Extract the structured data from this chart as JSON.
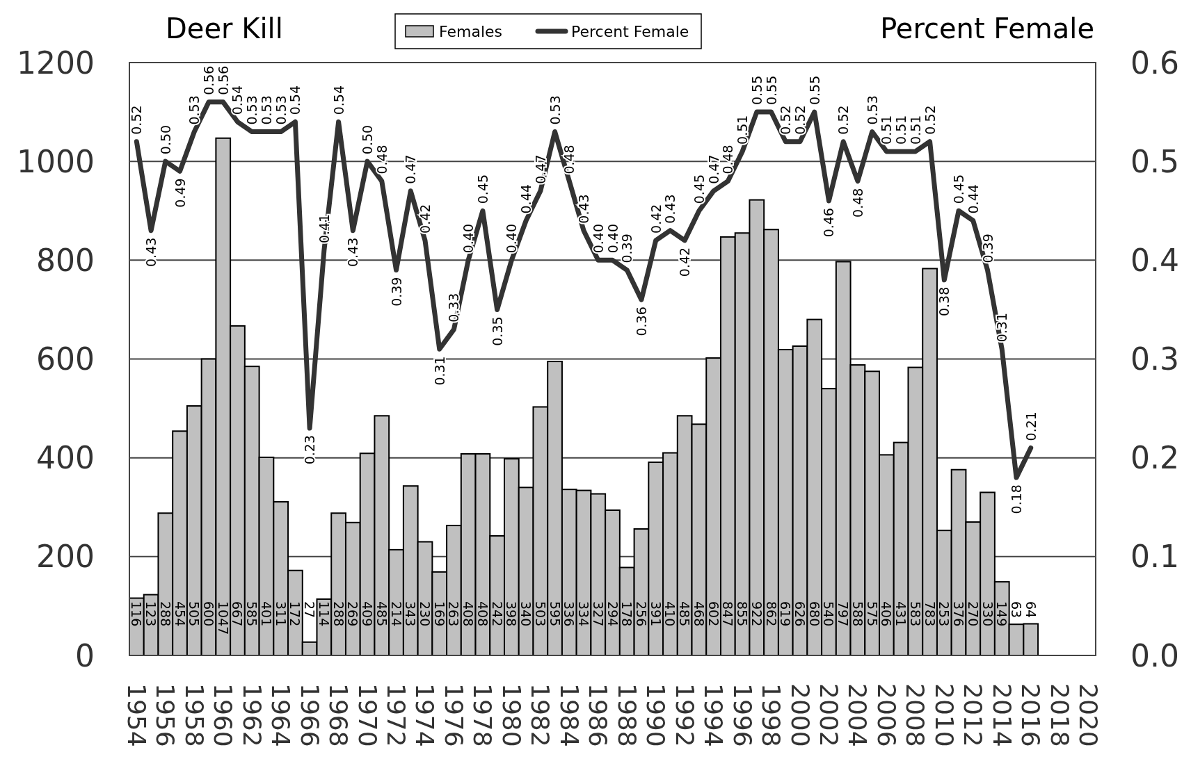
{
  "chart_data": {
    "type": "bar",
    "ylabel": "Deer Kill",
    "y2label": "Percent Female",
    "categories": [
      "1954",
      null,
      "1956",
      null,
      "1958",
      null,
      "1960",
      null,
      "1962",
      null,
      "1964",
      null,
      "1966",
      null,
      "1968",
      null,
      "1970",
      null,
      "1972",
      null,
      "1974",
      null,
      "1976",
      null,
      "1978",
      null,
      "1980",
      null,
      "1982",
      null,
      "1984",
      null,
      "1986",
      null,
      "1988",
      null,
      "1990",
      null,
      "1992",
      null,
      "1994",
      null,
      "1996",
      null,
      "1998",
      null,
      "2000",
      null,
      "2002",
      null,
      "2004",
      null,
      "2006",
      null,
      "2008",
      null,
      "2010",
      null,
      "2012",
      null,
      "2014",
      null,
      "2016",
      null,
      "2018",
      null,
      "2020"
    ],
    "series": [
      {
        "name": "Females",
        "color": "#c0c0c0",
        "data_labels": true,
        "values": [
          116,
          123,
          288,
          454,
          505,
          600,
          1047,
          667,
          585,
          401,
          311,
          172,
          27,
          114,
          288,
          269,
          409,
          485,
          214,
          343,
          230,
          169,
          263,
          408,
          408,
          242,
          398,
          340,
          503,
          595,
          336,
          334,
          327,
          294,
          178,
          256,
          391,
          410,
          485,
          468,
          602,
          847,
          855,
          922,
          862,
          619,
          626,
          680,
          540,
          797,
          588,
          575,
          406,
          431,
          583,
          783,
          253,
          376,
          270,
          330,
          149,
          63,
          64,
          null,
          null,
          null,
          null
        ]
      },
      {
        "name": "Percent Female",
        "type": "line",
        "axis": "y2",
        "color": "#333333",
        "values": [
          0.52,
          0.43,
          0.5,
          0.49,
          0.53,
          0.56,
          0.56,
          0.54,
          0.53,
          0.53,
          0.53,
          0.54,
          0.23,
          0.41,
          0.54,
          0.43,
          0.5,
          0.48,
          0.39,
          0.47,
          0.42,
          0.31,
          0.33,
          0.4,
          0.45,
          0.35,
          0.4,
          0.44,
          0.47,
          0.53,
          0.48,
          0.43,
          0.4,
          0.4,
          0.39,
          0.36,
          0.42,
          0.43,
          0.42,
          0.45,
          0.47,
          0.48,
          0.51,
          0.55,
          0.55,
          0.52,
          0.52,
          0.55,
          0.46,
          0.52,
          0.48,
          0.53,
          0.51,
          0.51,
          0.51,
          0.52,
          0.38,
          0.45,
          0.44,
          0.39,
          0.31,
          0.18,
          0.21,
          null,
          null,
          null,
          null
        ],
        "value_labels": [
          "0.52",
          "0.43",
          "0.50",
          "0.49",
          "0.53",
          "0.56",
          "0.56",
          "0.54",
          "0.53",
          "0.53",
          "0.53",
          "0.54",
          "0.23",
          "0.41",
          "0.54",
          "0.43",
          "0.50",
          "0.48",
          "0.39",
          "0.47",
          "0.42",
          "0.31",
          "0.33",
          "0.40",
          "0.45",
          "0.35",
          "0.40",
          "0.44",
          "0.47",
          "0.53",
          "0.48",
          "0.43",
          "0.40",
          "0.40",
          "0.39",
          "0.36",
          "0.42",
          "0.43",
          "0.42",
          "0.45",
          "0.47",
          "0.48",
          "0.51",
          "0.55",
          "0.55",
          "0.52",
          "0.52",
          "0.55",
          "0.46",
          "0.52",
          "0.48",
          "0.53",
          "0.51",
          "0.51",
          "0.51",
          "0.52",
          "0.38",
          "0.45",
          "0.44",
          "0.39",
          "0.31",
          "0.18",
          "0.21",
          null,
          null,
          null,
          null
        ]
      }
    ],
    "ylim": [
      0,
      1200
    ],
    "yticks": [
      0,
      200,
      400,
      600,
      800,
      1000,
      1200
    ],
    "y2lim": [
      0,
      0.6
    ],
    "y2ticks": [
      {
        "value": 0,
        "label": "0.0"
      },
      {
        "value": 0.1,
        "label": "0.1"
      },
      {
        "value": 0.2,
        "label": "0.2"
      },
      {
        "value": 0.3,
        "label": "0.3"
      },
      {
        "value": 0.4,
        "label": "0.4"
      },
      {
        "value": 0.5,
        "label": "0.5"
      },
      {
        "value": 0.6,
        "label": "0.6"
      }
    ],
    "grid": "y",
    "legend": "top",
    "marker": "none",
    "line_style": "solid"
  }
}
